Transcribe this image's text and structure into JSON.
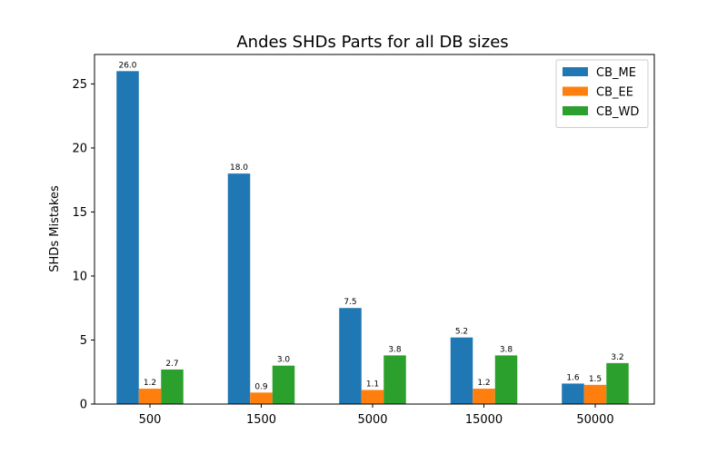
{
  "chart_data": {
    "type": "bar",
    "title": "Andes SHDs Parts for all DB sizes",
    "xlabel": "",
    "ylabel": "SHDs Mistakes",
    "categories": [
      "500",
      "1500",
      "5000",
      "15000",
      "50000"
    ],
    "series": [
      {
        "name": "CB_ME",
        "color": "#1f77b4",
        "values": [
          26.0,
          18.0,
          7.5,
          5.2,
          1.6
        ],
        "labels": [
          "26.0",
          "18.0",
          "7.5",
          "5.2",
          "1.6"
        ]
      },
      {
        "name": "CB_EE",
        "color": "#ff7f0e",
        "values": [
          1.2,
          0.9,
          1.1,
          1.2,
          1.5
        ],
        "labels": [
          "1.2",
          "0.9",
          "1.1",
          "1.2",
          "1.5"
        ]
      },
      {
        "name": "CB_WD",
        "color": "#2ca02c",
        "values": [
          2.7,
          3.0,
          3.8,
          3.8,
          3.2
        ],
        "labels": [
          "2.7",
          "3.0",
          "3.8",
          "3.8",
          "3.2"
        ]
      }
    ],
    "ylim": [
      0,
      27.3
    ],
    "yticks": [
      0,
      5,
      10,
      15,
      20,
      25
    ],
    "ytick_labels": [
      "0",
      "5",
      "10",
      "15",
      "20",
      "25"
    ],
    "grid": false,
    "legend_position": "top-right"
  }
}
